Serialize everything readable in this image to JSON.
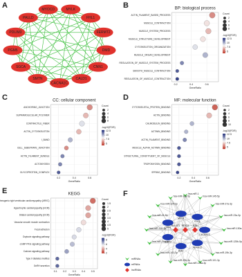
{
  "chart_data": [
    {
      "type": "dot",
      "panel": "B",
      "title": "BP: biological process",
      "xlabel": "GeneRatio",
      "categories": [
        "ACTIN_FILAMENT_BASED_PROCESS",
        "MUSCLE_CONTRACTION",
        "MUSCLE_SYSTEM_PROCESS",
        "MUSCLE_STRUCTURE_DEVELOPMENT",
        "CYTOSKELETON_ORGANIZATION",
        "MUSCLE_ORGAN_DEVELOPMENT",
        "REGULATION_OF_MUSCLE_SYSTEM_PROCESS",
        "SMOOTH_MUSCLE_CONTRACTION",
        "REGULATION_OF_MUSCLE_CONTRACTION"
      ],
      "values": [
        0.67,
        0.6,
        0.62,
        0.55,
        0.45,
        0.58,
        0.28,
        0.22,
        0.22
      ],
      "sizes": [
        9,
        8,
        8,
        7,
        6,
        7,
        3,
        2,
        2
      ],
      "color_values": [
        6,
        8,
        7,
        8,
        9,
        10,
        11,
        12,
        12.5
      ],
      "xlim": [
        0.15,
        0.75
      ],
      "xticks": [
        0.2,
        0.4,
        0.6
      ],
      "size_title": "Count",
      "size_legend": [
        2,
        4,
        6,
        8
      ],
      "color_title": "-log10(FDR)",
      "clim": [
        4,
        13
      ],
      "color_ticks": [
        5,
        7.5,
        10,
        12.5
      ],
      "colormap": [
        "#c0392b",
        "#f7f7f7",
        "#1f2d7a"
      ]
    },
    {
      "type": "dot",
      "panel": "C",
      "title": "CC: cellular component",
      "xlabel": "GeneRatio",
      "categories": [
        "ANCHORING_JUNCTION",
        "SUPRAMOLECULAR_POLYMER",
        "CONTRACTILE_FIBER",
        "ACTIN_CYTOSKELETON",
        "I_BAND",
        "CELL_SUBSTRATE_JUNCTION",
        "ACTIN_FILAMENT_BUNDLE",
        "ACTOMYOSIN",
        "GLYCOPROTEIN_COMPLEX"
      ],
      "values": [
        0.6,
        0.55,
        0.5,
        0.46,
        0.35,
        0.3,
        0.25,
        0.22,
        0.2
      ],
      "sizes": [
        8,
        7,
        7,
        6,
        5,
        4,
        3,
        3,
        2
      ],
      "color_values": [
        6,
        7,
        9,
        7,
        10,
        6,
        11,
        11,
        12
      ],
      "xlim": [
        0.1,
        0.7
      ],
      "xticks": [
        0.2,
        0.4,
        0.6
      ],
      "size_title": "Count",
      "size_legend": [
        2,
        4,
        6,
        8
      ],
      "color_title": "-log10(FDR)",
      "clim": [
        4,
        13
      ],
      "color_ticks": [
        5,
        7.5,
        10,
        12.5
      ],
      "colormap": [
        "#c0392b",
        "#f7f7f7",
        "#1f2d7a"
      ]
    },
    {
      "type": "dot",
      "panel": "D",
      "title": "MF: molecular function",
      "xlabel": "GeneRatio",
      "categories": [
        "CYTOSKELETAL_PROTEIN_BINDING",
        "ACTIN_BINDING",
        "CALMODULIN_BINDING",
        "ACTININ_BINDING",
        "ACTIN_FILAMENT_BINDING",
        "MUSCLE_ALPHA_ACTININ_BINDING",
        "STRUCTURAL_CONSTITUENT_OF_MUSCLE",
        "TROPOMYOSIN_BINDING",
        "SPRING_BINDING"
      ],
      "values": [
        0.7,
        0.62,
        0.38,
        0.3,
        0.28,
        0.2,
        0.2,
        0.2,
        0.18
      ],
      "sizes": [
        10,
        9,
        5,
        4,
        4,
        3,
        3,
        3,
        2
      ],
      "color_values": [
        5,
        7,
        10,
        10,
        11,
        12,
        12,
        12,
        12.5
      ],
      "xlim": [
        0.1,
        0.75
      ],
      "xticks": [
        0.2,
        0.4,
        0.6
      ],
      "size_title": "Count",
      "size_legend": [
        2,
        4,
        6,
        8,
        10
      ],
      "color_title": "-log10(FDR)",
      "clim": [
        4,
        13
      ],
      "color_ticks": [
        5,
        7.5,
        10,
        12.5
      ],
      "colormap": [
        "#c0392b",
        "#f7f7f7",
        "#1f2d7a"
      ]
    },
    {
      "type": "dot",
      "panel": "E",
      "title": "KEGG",
      "xlabel": "GeneRatio",
      "categories": [
        "Arrhythmogenic right ventricular cardiomyopathy (ARVC)",
        "Hypertrophic cardiomyopathy (HCM)",
        "Dilated cardiomyopathy (DCM)",
        "Vascular smooth muscle contraction",
        "Focal adhesion",
        "Oxytocin signaling pathway",
        "cGMP-PKG signaling pathway",
        "Calcium signaling pathway",
        "Type II diabetes mellitus",
        "GnRH secretion"
      ],
      "values": [
        0.5,
        0.45,
        0.45,
        0.4,
        0.35,
        0.3,
        0.28,
        0.22,
        0.12,
        0.12
      ],
      "sizes": [
        5,
        4.5,
        4.5,
        4,
        3.5,
        3,
        3,
        2.5,
        1.5,
        1.5
      ],
      "color_values": [
        3,
        4,
        4,
        5,
        6,
        6,
        6.5,
        7,
        8,
        8
      ],
      "xlim": [
        0.05,
        0.55
      ],
      "xticks": [
        0.1,
        0.2,
        0.3,
        0.4,
        0.5
      ],
      "size_title": "Count",
      "size_legend": [
        1.5,
        2,
        2.5,
        3,
        3.5,
        4,
        4.5,
        5
      ],
      "color_title": "-log10(FDR)",
      "clim": [
        2,
        9
      ],
      "color_ticks": [
        2,
        4,
        6,
        8
      ],
      "colormap": [
        "#c0392b",
        "#f7f7f7",
        "#1f2d7a"
      ]
    }
  ],
  "network_a": {
    "panel": "A",
    "nodes": [
      "MYOCD",
      "MYLK",
      "FHL1",
      "FERMT2",
      "DMD",
      "CNN1",
      "CALD1",
      "CACNA1C",
      "SMTN",
      "SGCA",
      "PGM5",
      "PDLIM3",
      "PALLD"
    ]
  },
  "network_f": {
    "panel": "F",
    "mirnas": [
      "hsa-miR-1",
      "hsa-miR-145-5p",
      "hsa-miR-27a-3p",
      "hsa-miR-23a-3p",
      "hsa-miR-130a-3p",
      "hsa-miR-125b-5p",
      "hsa-miR-19b-3p",
      "hsa-miR-101-3p",
      "hsa-miR-133a-3p",
      "hsa-miR-29b-3p",
      "hsa-miR-143-3p",
      "hsa-miR-26a-5p",
      "hsa-miR-155-5p",
      "hsa-miR-21-5p",
      "hsa-miR-124-3p",
      "hsa-miR-30a-5p"
    ],
    "mrnas": [
      "CACNA1C",
      "ADAM12",
      "DMD",
      "SMTN",
      "CNN1",
      "MYLK",
      "FHL1"
    ],
    "lncrnas": [
      "MALAT1",
      "NEAT1",
      "H19"
    ],
    "legend": [
      "miRNAs",
      "mRNAs",
      "lncRNAs"
    ]
  }
}
